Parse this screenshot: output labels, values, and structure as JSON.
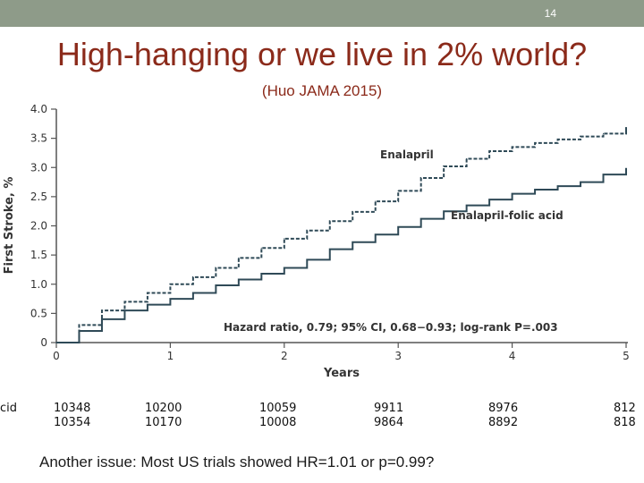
{
  "slide": {
    "number": "14",
    "title": "High-hanging or we live in 2% world?",
    "subtitle": "(Huo JAMA 2015)",
    "footer": "Another issue: Most US trials showed HR=1.01 or p=0.99?"
  },
  "colors": {
    "accent": "#8b2a1a",
    "topbar": "#8e9b89",
    "curve": "#2f4a57",
    "text": "#333333"
  },
  "chart_data": {
    "type": "line",
    "xlabel": "Years",
    "ylabel": "First Stroke, %",
    "xlim": [
      0,
      5
    ],
    "ylim": [
      0,
      4.0
    ],
    "xticks": [
      "0",
      "1",
      "2",
      "3",
      "4",
      "5"
    ],
    "yticks": [
      "0",
      "0.5",
      "1.0",
      "1.5",
      "2.0",
      "2.5",
      "3.0",
      "3.5",
      "4.0"
    ],
    "grid": false,
    "series": [
      {
        "name": "Enalapril",
        "style": "dashed",
        "x": [
          0,
          0.2,
          0.4,
          0.6,
          0.8,
          1.0,
          1.2,
          1.4,
          1.6,
          1.8,
          2.0,
          2.2,
          2.4,
          2.6,
          2.8,
          3.0,
          3.2,
          3.4,
          3.6,
          3.8,
          4.0,
          4.2,
          4.4,
          4.6,
          4.8,
          5.0
        ],
        "values": [
          0,
          0.3,
          0.55,
          0.7,
          0.85,
          1.0,
          1.12,
          1.28,
          1.45,
          1.62,
          1.78,
          1.92,
          2.08,
          2.24,
          2.42,
          2.6,
          2.82,
          3.02,
          3.15,
          3.28,
          3.35,
          3.42,
          3.48,
          3.53,
          3.58,
          3.6
        ]
      },
      {
        "name": "Enalapril-folic acid",
        "style": "solid",
        "x": [
          0,
          0.2,
          0.4,
          0.6,
          0.8,
          1.0,
          1.2,
          1.4,
          1.6,
          1.8,
          2.0,
          2.2,
          2.4,
          2.6,
          2.8,
          3.0,
          3.2,
          3.4,
          3.6,
          3.8,
          4.0,
          4.2,
          4.4,
          4.6,
          4.8,
          5.0
        ],
        "values": [
          0,
          0.2,
          0.4,
          0.55,
          0.65,
          0.75,
          0.85,
          0.98,
          1.08,
          1.18,
          1.28,
          1.42,
          1.6,
          1.72,
          1.85,
          1.98,
          2.12,
          2.25,
          2.35,
          2.45,
          2.55,
          2.62,
          2.68,
          2.75,
          2.88,
          2.9
        ]
      }
    ],
    "annotation": "Hazard ratio, 0.79; 95% CI, 0.68−0.93; log-rank P=.003",
    "at_risk": {
      "label": "cid",
      "rows": [
        [
          "10348",
          "10200",
          "10059",
          "9911",
          "8976",
          "812"
        ],
        [
          "10354",
          "10170",
          "10008",
          "9864",
          "8892",
          "818"
        ]
      ]
    }
  }
}
